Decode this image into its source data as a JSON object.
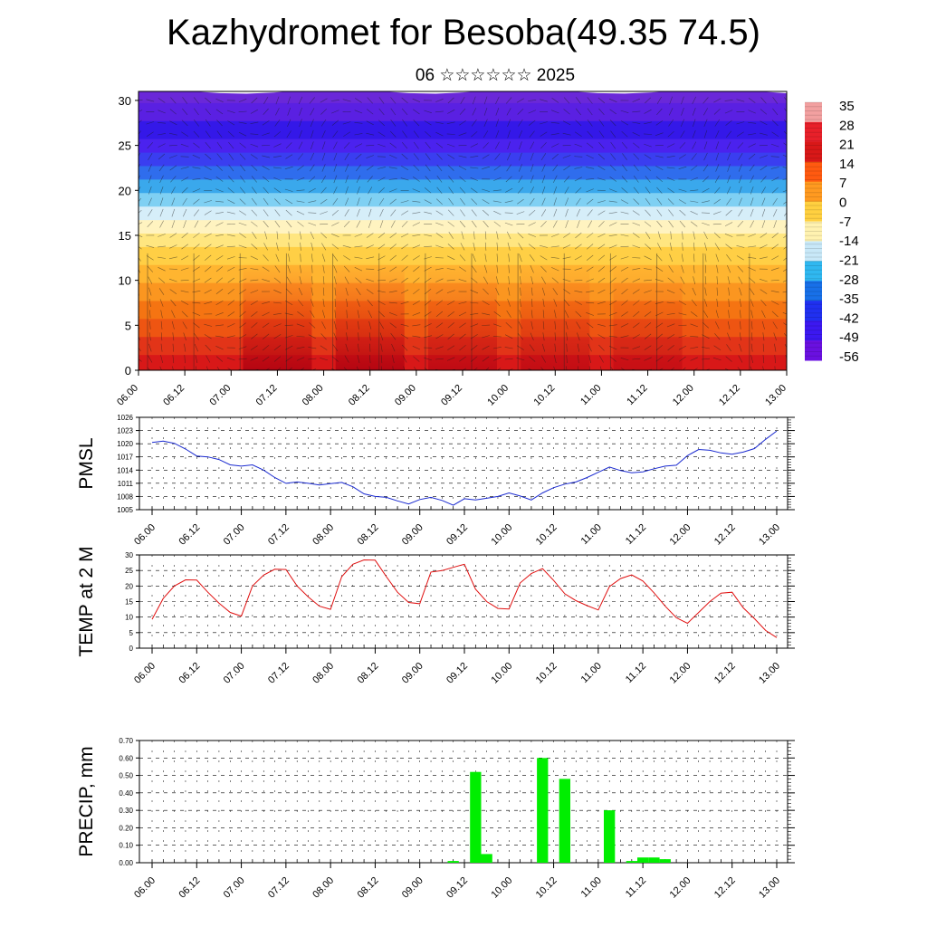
{
  "title": "Kazhydromet for Besoba(49.35 74.5)",
  "subtitle": "06 ☆☆☆☆☆☆ 2025",
  "chart_data": [
    {
      "type": "heatmap",
      "name": "cross-section",
      "ylim": [
        0,
        31
      ],
      "yticks": [
        0,
        5,
        10,
        15,
        20,
        25,
        30
      ],
      "x_ticks": [
        "06.00",
        "06.12",
        "07.00",
        "07.12",
        "08.00",
        "08.12",
        "09.00",
        "09.12",
        "10.00",
        "10.12",
        "11.00",
        "11.12",
        "12.00",
        "12.12",
        "13.00"
      ],
      "colorbar_labels": [
        "35",
        "28",
        "21",
        "14",
        "7",
        "0",
        "-7",
        "-14",
        "-21",
        "-28",
        "-35",
        "-42",
        "-49",
        "-56"
      ],
      "colorbar_colors": [
        "#f2a0a0",
        "#e8202a",
        "#d81818",
        "#ff5a10",
        "#ff9a20",
        "#ffd040",
        "#fff2b0",
        "#c8e8f8",
        "#30b8f0",
        "#1870e8",
        "#2030f0",
        "#3c18f0",
        "#6a10e0"
      ],
      "contour_bands": {
        "heights": [
          0,
          2,
          4,
          6,
          8,
          10,
          12,
          14,
          15.5,
          17,
          18.5,
          20,
          21.5,
          23,
          24.5,
          26,
          28,
          30,
          31
        ],
        "colors": [
          "#d81818",
          "#e23418",
          "#ee5512",
          "#f57412",
          "#fb9620",
          "#ffb530",
          "#ffcf45",
          "#ffe680",
          "#fff3c0",
          "#d6eef9",
          "#7fd0f3",
          "#3aa8ec",
          "#2f6ded",
          "#3a3ef0",
          "#4b22ee",
          "#3418e8",
          "#5a20e2",
          "#6a28d8"
        ]
      },
      "warm_columns": [
        {
          "x": "07.12",
          "strength": 1
        },
        {
          "x": "08.12",
          "strength": 1
        },
        {
          "x": "09.12",
          "strength": 0.7
        },
        {
          "x": "10.12",
          "strength": 0.6
        },
        {
          "x": "11.12",
          "strength": 0.5
        }
      ]
    },
    {
      "type": "line",
      "name": "pmsl",
      "ylabel": "PMSL",
      "ylim": [
        1005,
        1026
      ],
      "yticks": [
        1005,
        1008,
        1011,
        1014,
        1017,
        1020,
        1023,
        1026
      ],
      "color": "#1a2ad0",
      "x_ticks": [
        "06.00",
        "06.12",
        "07.00",
        "07.12",
        "08.00",
        "08.12",
        "09.00",
        "09.12",
        "10.00",
        "10.12",
        "11.00",
        "11.12",
        "12.00",
        "12.12",
        "13.00"
      ],
      "x": [
        0,
        1,
        2,
        3,
        4,
        5,
        6,
        7,
        8,
        9,
        10,
        11,
        12,
        13,
        14,
        15,
        16,
        17,
        18,
        19,
        20,
        21,
        22,
        23,
        24,
        25,
        26,
        27,
        28,
        29,
        30,
        31,
        32,
        33,
        34,
        35,
        36,
        37,
        38,
        39,
        40,
        41,
        42,
        43,
        44,
        45,
        46,
        47,
        48,
        49,
        50,
        51,
        52,
        53,
        54,
        55,
        56
      ],
      "values": [
        1020.3,
        1020.6,
        1020.1,
        1018.8,
        1017.2,
        1017.0,
        1016.4,
        1015.2,
        1014.9,
        1015.2,
        1014.0,
        1012.3,
        1011.0,
        1011.3,
        1011.0,
        1010.6,
        1010.9,
        1011.2,
        1010.2,
        1008.6,
        1008.0,
        1007.8,
        1007.0,
        1006.3,
        1007.3,
        1007.8,
        1007.1,
        1006.0,
        1007.5,
        1007.2,
        1007.6,
        1008.0,
        1008.8,
        1008.1,
        1007.2,
        1008.8,
        1010.0,
        1010.8,
        1011.3,
        1012.3,
        1013.5,
        1014.7,
        1013.9,
        1013.4,
        1013.6,
        1014.3,
        1014.9,
        1015.1,
        1017.3,
        1018.7,
        1018.5,
        1017.9,
        1017.6,
        1018.1,
        1018.9,
        1021.0,
        1022.9
      ]
    },
    {
      "type": "line",
      "name": "temp",
      "ylabel": "TEMP at 2 M",
      "ylim": [
        0,
        30
      ],
      "yticks": [
        0,
        5,
        10,
        15,
        20,
        25,
        30
      ],
      "color": "#e01010",
      "x_ticks": [
        "06.00",
        "06.12",
        "07.00",
        "07.12",
        "08.00",
        "08.12",
        "09.00",
        "09.12",
        "10.00",
        "10.12",
        "11.00",
        "11.12",
        "12.00",
        "12.12",
        "13.00"
      ],
      "x": [
        0,
        1,
        2,
        3,
        4,
        5,
        6,
        7,
        8,
        9,
        10,
        11,
        12,
        13,
        14,
        15,
        16,
        17,
        18,
        19,
        20,
        21,
        22,
        23,
        24,
        25,
        26,
        27,
        28,
        29,
        30,
        31,
        32,
        33,
        34,
        35,
        36,
        37,
        38,
        39,
        40,
        41,
        42,
        43,
        44,
        45,
        46,
        47,
        48,
        49,
        50,
        51,
        52,
        53,
        54,
        55,
        56
      ],
      "values": [
        9.3,
        16.0,
        20.0,
        22.0,
        21.9,
        18.0,
        14.5,
        11.5,
        10.3,
        20.0,
        23.5,
        25.4,
        25.3,
        20.0,
        16.5,
        13.5,
        12.5,
        23.0,
        27.0,
        28.4,
        28.3,
        23.0,
        18.0,
        14.7,
        14.3,
        24.5,
        25.0,
        26.0,
        27.0,
        19.0,
        15.0,
        12.8,
        12.6,
        21.0,
        24.0,
        25.6,
        21.8,
        17.5,
        15.3,
        13.7,
        12.3,
        19.8,
        22.4,
        23.6,
        21.6,
        17.8,
        13.5,
        9.8,
        8.0,
        11.5,
        15.0,
        17.7,
        18.0,
        13.0,
        9.5,
        5.7,
        3.4
      ]
    },
    {
      "type": "bar",
      "name": "precip",
      "ylabel": "PRECIP, mm",
      "ylim": [
        0,
        0.7
      ],
      "yticks": [
        "0.00",
        "0.10",
        "0.20",
        "0.30",
        "0.40",
        "0.50",
        "0.60",
        "0.70"
      ],
      "color": "#00ee00",
      "x_ticks": [
        "06.00",
        "06.12",
        "07.00",
        "07.12",
        "08.00",
        "08.12",
        "09.00",
        "09.12",
        "10.00",
        "10.12",
        "11.00",
        "11.12",
        "12.00",
        "12.12",
        "13.00"
      ],
      "x": [
        0,
        1,
        2,
        3,
        4,
        5,
        6,
        7,
        8,
        9,
        10,
        11,
        12,
        13,
        14,
        15,
        16,
        17,
        18,
        19,
        20,
        21,
        22,
        23,
        24,
        25,
        26,
        27,
        28,
        29,
        30,
        31,
        32,
        33,
        34,
        35,
        36,
        37,
        38,
        39,
        40,
        41,
        42,
        43,
        44,
        45,
        46,
        47,
        48,
        49,
        50,
        51,
        52,
        53,
        54,
        55,
        56
      ],
      "values": [
        0,
        0,
        0,
        0,
        0,
        0,
        0,
        0,
        0,
        0,
        0,
        0,
        0,
        0,
        0,
        0,
        0,
        0,
        0,
        0,
        0,
        0,
        0,
        0,
        0,
        0,
        0,
        0.01,
        0,
        0.52,
        0.05,
        0,
        0,
        0,
        0,
        0.6,
        0,
        0.48,
        0,
        0,
        0,
        0.3,
        0,
        0.01,
        0.03,
        0.03,
        0.02,
        0,
        0,
        0,
        0,
        0,
        0,
        0,
        0,
        0,
        0
      ]
    }
  ]
}
